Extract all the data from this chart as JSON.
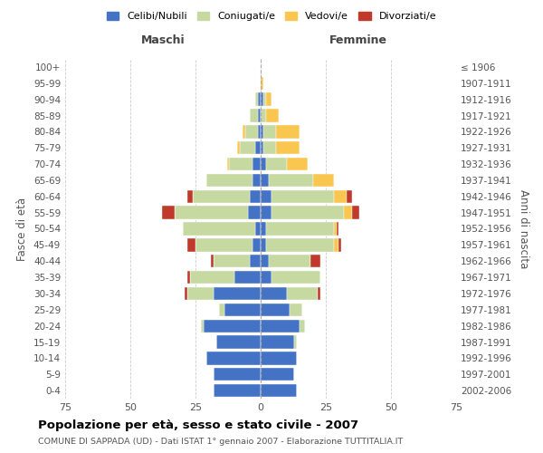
{
  "age_groups": [
    "0-4",
    "5-9",
    "10-14",
    "15-19",
    "20-24",
    "25-29",
    "30-34",
    "35-39",
    "40-44",
    "45-49",
    "50-54",
    "55-59",
    "60-64",
    "65-69",
    "70-74",
    "75-79",
    "80-84",
    "85-89",
    "90-94",
    "95-99",
    "100+"
  ],
  "birth_years": [
    "2002-2006",
    "1997-2001",
    "1992-1996",
    "1987-1991",
    "1982-1986",
    "1977-1981",
    "1972-1976",
    "1967-1971",
    "1962-1966",
    "1957-1961",
    "1952-1956",
    "1947-1951",
    "1942-1946",
    "1937-1941",
    "1932-1936",
    "1927-1931",
    "1922-1926",
    "1917-1921",
    "1912-1916",
    "1907-1911",
    "≤ 1906"
  ],
  "males": {
    "celibi": [
      18,
      18,
      21,
      17,
      22,
      14,
      18,
      10,
      4,
      3,
      2,
      5,
      4,
      3,
      3,
      2,
      1,
      1,
      1,
      0,
      0
    ],
    "coniugati": [
      0,
      0,
      0,
      0,
      1,
      2,
      10,
      17,
      14,
      22,
      28,
      28,
      22,
      18,
      9,
      6,
      5,
      3,
      1,
      0,
      0
    ],
    "vedovi": [
      0,
      0,
      0,
      0,
      0,
      0,
      0,
      0,
      0,
      0,
      0,
      0,
      0,
      0,
      1,
      1,
      1,
      0,
      0,
      0,
      0
    ],
    "divorziati": [
      0,
      0,
      0,
      0,
      0,
      0,
      1,
      1,
      1,
      3,
      0,
      5,
      2,
      0,
      0,
      0,
      0,
      0,
      0,
      0,
      0
    ]
  },
  "females": {
    "nubili": [
      14,
      13,
      14,
      13,
      15,
      11,
      10,
      4,
      3,
      2,
      2,
      4,
      4,
      3,
      2,
      1,
      1,
      0,
      1,
      0,
      0
    ],
    "coniugate": [
      0,
      0,
      0,
      1,
      2,
      5,
      12,
      19,
      16,
      26,
      26,
      28,
      24,
      17,
      8,
      5,
      5,
      2,
      1,
      0,
      0
    ],
    "vedove": [
      0,
      0,
      0,
      0,
      0,
      0,
      0,
      0,
      0,
      2,
      1,
      3,
      5,
      8,
      8,
      9,
      9,
      5,
      2,
      1,
      0
    ],
    "divorziate": [
      0,
      0,
      0,
      0,
      0,
      0,
      1,
      0,
      4,
      1,
      1,
      3,
      2,
      0,
      0,
      0,
      0,
      0,
      0,
      0,
      0
    ]
  },
  "colors": {
    "celibi": "#4472c4",
    "coniugati": "#c6d9a0",
    "vedovi": "#f9c74f",
    "divorziati": "#c0392b"
  },
  "xlim": 75,
  "title": "Popolazione per età, sesso e stato civile - 2007",
  "subtitle": "COMUNE DI SAPPADA (UD) - Dati ISTAT 1° gennaio 2007 - Elaborazione TUTTITALIA.IT",
  "xlabel_left": "Maschi",
  "xlabel_right": "Femmine",
  "ylabel_left": "Fasce di età",
  "ylabel_right": "Anni di nascita",
  "legend_labels": [
    "Celibi/Nubili",
    "Coniugati/e",
    "Vedovi/e",
    "Divorziati/e"
  ],
  "background_color": "#ffffff",
  "grid_color": "#cccccc"
}
